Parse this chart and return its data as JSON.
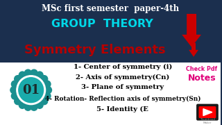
{
  "top_text": "MSc first semester  paper-4th",
  "group_theory": "GROUP  THEORY",
  "symmetry_elements": "Symmetry Elements",
  "bg_top_color": "#1b2f4e",
  "bg_bottom_color": "#ffffff",
  "cyan_color": "#00d8e8",
  "red_color": "#b50000",
  "items": [
    "1- Center of symmetry (i)",
    "2- Axis of symmetry(Cn)",
    "3- Plane of symmetry",
    "4- Rotation- Reflection axis of symmetry(Sn)",
    "5- Identity (E"
  ],
  "badge_number": "01",
  "check_pdf": "Check Pdf",
  "notes": "Notes",
  "teal_color": "#1b9090",
  "teal_light": "#1aabab",
  "arrow_color": "#cc0000",
  "pink_color": "#e0007a"
}
